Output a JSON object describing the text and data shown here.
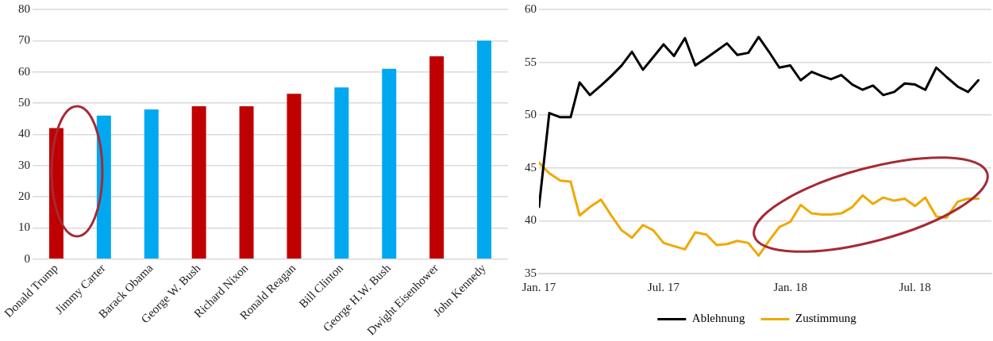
{
  "chart_data": [
    {
      "type": "bar",
      "categories": [
        "Donald Trump",
        "Jimmy Carter",
        "Barack Obama",
        "George W. Bush",
        "Richard Nixon",
        "Ronald Reagan",
        "Bill Clinton",
        "George H.W. Bush",
        "Dwight Eisenhower",
        "John Kennedy"
      ],
      "values": [
        42,
        46,
        48,
        49,
        49,
        53,
        55,
        61,
        65,
        70
      ],
      "colors": [
        "#c00000",
        "#00a8f0",
        "#00a8f0",
        "#c00000",
        "#c00000",
        "#c00000",
        "#00a8f0",
        "#00a8f0",
        "#c00000",
        "#00a8f0"
      ],
      "ylim": [
        0,
        80
      ],
      "yticks": [
        0,
        10,
        20,
        30,
        40,
        50,
        60,
        70,
        80
      ],
      "grid": "y",
      "legend": false
    },
    {
      "type": "line",
      "x": [
        "2017-01-01",
        "2017-01-16",
        "2017-02-01",
        "2017-02-16",
        "2017-03-01",
        "2017-03-16",
        "2017-04-01",
        "2017-04-16",
        "2017-05-01",
        "2017-05-16",
        "2017-06-01",
        "2017-06-16",
        "2017-07-01",
        "2017-07-16",
        "2017-08-01",
        "2017-08-16",
        "2017-09-01",
        "2017-09-16",
        "2017-10-01",
        "2017-10-16",
        "2017-11-01",
        "2017-11-16",
        "2017-12-01",
        "2017-12-16",
        "2018-01-01",
        "2018-01-16",
        "2018-02-01",
        "2018-02-16",
        "2018-03-01",
        "2018-03-16",
        "2018-04-01",
        "2018-04-16",
        "2018-05-01",
        "2018-05-16",
        "2018-06-01",
        "2018-06-16",
        "2018-07-01",
        "2018-07-16",
        "2018-08-01",
        "2018-08-16",
        "2018-09-01",
        "2018-09-16",
        "2018-10-01"
      ],
      "series": [
        {
          "name": "Ablehnung",
          "color": "#000000",
          "values": [
            41.3,
            50.2,
            49.8,
            49.8,
            53.1,
            51.9,
            52.8,
            53.7,
            54.7,
            56.0,
            54.3,
            55.5,
            56.7,
            55.6,
            57.3,
            54.7,
            55.4,
            56.1,
            56.8,
            55.7,
            55.9,
            57.4,
            56.0,
            54.5,
            54.7,
            53.3,
            54.1,
            53.7,
            53.4,
            53.8,
            52.9,
            52.4,
            52.8,
            51.9,
            52.2,
            53.0,
            52.9,
            52.4,
            54.5,
            53.6,
            52.7,
            52.2,
            53.3
          ]
        },
        {
          "name": "Zustimmung",
          "color": "#f0a800",
          "values": [
            45.5,
            44.5,
            43.8,
            43.7,
            40.5,
            41.3,
            42.0,
            40.5,
            39.1,
            38.4,
            39.6,
            39.1,
            37.9,
            37.6,
            37.3,
            38.9,
            38.7,
            37.7,
            37.8,
            38.1,
            37.9,
            36.7,
            38.1,
            39.4,
            39.9,
            41.5,
            40.7,
            40.6,
            40.6,
            40.7,
            41.3,
            42.4,
            41.6,
            42.2,
            41.9,
            42.1,
            41.4,
            42.2,
            40.4,
            40.3,
            41.8,
            42.1,
            42.1
          ]
        }
      ],
      "xlim": [
        "2017-01-01",
        "2018-10-20"
      ],
      "xticks": [
        {
          "value": "2017-01-01",
          "label": "Jan. 17"
        },
        {
          "value": "2017-07-01",
          "label": "Jul. 17"
        },
        {
          "value": "2018-01-01",
          "label": "Jan. 18"
        },
        {
          "value": "2018-07-01",
          "label": "Jul. 18"
        }
      ],
      "ylim": [
        35,
        60
      ],
      "yticks": [
        35,
        40,
        45,
        50,
        55,
        60
      ],
      "grid": "y",
      "legend": "bottom",
      "marker": "none",
      "line_style": "solid"
    }
  ]
}
